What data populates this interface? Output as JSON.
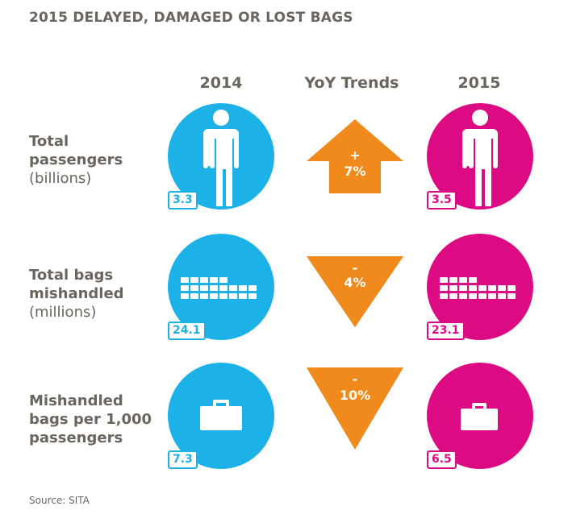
{
  "title": "2015 DELAYED, DAMAGED OR LOST BAGS",
  "columns": {
    "y2014": "2014",
    "trend": "YoY Trends",
    "y2015": "2015"
  },
  "rows": [
    {
      "label_bold": "Total passengers",
      "label_unit": "(billions)",
      "icon": "person-icon",
      "value_2014": "3.3",
      "value_2015": "3.5",
      "trend_sign": "+",
      "trend_value": "7%",
      "trend_direction": "up"
    },
    {
      "label_bold": "Total bags mishandled",
      "label_unit": "(millions)",
      "icon": "luggage-rows-icon",
      "value_2014": "24.1",
      "value_2015": "23.1",
      "trend_sign": "-",
      "trend_value": "4%",
      "trend_direction": "down"
    },
    {
      "label_bold": "Mishandled bags per 1,000 passengers",
      "label_unit": "",
      "icon": "briefcase-icon",
      "value_2014": "7.3",
      "value_2015": "6.5",
      "trend_sign": "-",
      "trend_value": "10%",
      "trend_direction": "down"
    }
  ],
  "source": "Source: SITA",
  "colors": {
    "blue_2014": "#1cb2e7",
    "pink_2015": "#dc0b83",
    "orange_trend": "#f08a1c",
    "text_gray": "#6b655d"
  }
}
